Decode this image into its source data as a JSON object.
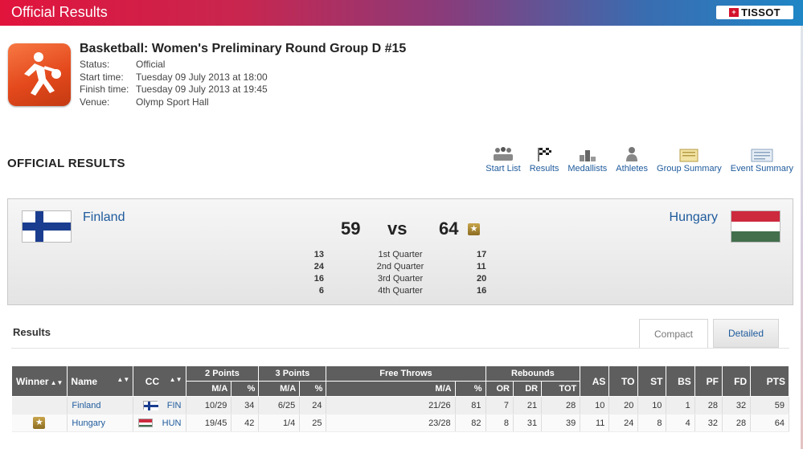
{
  "header": {
    "title": "Official Results",
    "brand": "TISSOT"
  },
  "event": {
    "title": "Basketball: Women's Preliminary Round Group D #15",
    "details": [
      {
        "key": "Status:",
        "value": "Official"
      },
      {
        "key": "Start time:",
        "value": "Tuesday 09 July 2013 at 18:00"
      },
      {
        "key": "Finish time:",
        "value": "Tuesday 09 July 2013 at 19:45"
      },
      {
        "key": "Venue:",
        "value": "Olymp Sport Hall"
      }
    ]
  },
  "section_title": "OFFICIAL RESULTS",
  "nav": [
    {
      "label": "Start List",
      "icon": "start-list-icon"
    },
    {
      "label": "Results",
      "icon": "checkered-flag-icon"
    },
    {
      "label": "Medallists",
      "icon": "podium-icon"
    },
    {
      "label": "Athletes",
      "icon": "athlete-icon"
    },
    {
      "label": "Group Summary",
      "icon": "folder-icon"
    },
    {
      "label": "Event Summary",
      "icon": "document-icon"
    }
  ],
  "match": {
    "team_left": "Finland",
    "team_right": "Hungary",
    "score_left": "59",
    "score_right": "64",
    "vs": "vs",
    "winner_icon": "star-icon",
    "quarters": [
      {
        "left": "13",
        "name": "1st Quarter",
        "right": "17"
      },
      {
        "left": "24",
        "name": "2nd Quarter",
        "right": "11"
      },
      {
        "left": "16",
        "name": "3rd Quarter",
        "right": "20"
      },
      {
        "left": "6",
        "name": "4th Quarter",
        "right": "16"
      }
    ]
  },
  "results": {
    "label": "Results",
    "tabs": {
      "compact": "Compact",
      "detailed": "Detailed"
    },
    "headers": {
      "winner": "Winner",
      "name": "Name",
      "cc": "CC",
      "two": "2 Points",
      "three": "3 Points",
      "ft": "Free Throws",
      "reb": "Rebounds",
      "as": "AS",
      "to": "TO",
      "st": "ST",
      "bs": "BS",
      "pf": "PF",
      "fd": "FD",
      "pts": "PTS",
      "ma": "M/A",
      "pct": "%",
      "or": "OR",
      "dr": "DR",
      "tot": "TOT"
    },
    "rows": [
      {
        "winner": false,
        "name": "Finland",
        "cc": "FIN",
        "two_ma": "10/29",
        "two_pct": "34",
        "three_ma": "6/25",
        "three_pct": "24",
        "ft_ma": "21/26",
        "ft_pct": "81",
        "or": "7",
        "dr": "21",
        "tot": "28",
        "as": "10",
        "to": "20",
        "st": "10",
        "bs": "1",
        "pf": "28",
        "fd": "32",
        "pts": "59"
      },
      {
        "winner": true,
        "name": "Hungary",
        "cc": "HUN",
        "two_ma": "19/45",
        "two_pct": "42",
        "three_ma": "1/4",
        "three_pct": "25",
        "ft_ma": "23/28",
        "ft_pct": "82",
        "or": "8",
        "dr": "31",
        "tot": "39",
        "as": "11",
        "to": "24",
        "st": "8",
        "bs": "4",
        "pf": "32",
        "fd": "28",
        "pts": "64"
      }
    ]
  },
  "colors": {
    "link": "#1e5a9c",
    "header_start": "#e1143c",
    "header_end": "#1f86c6",
    "table_header": "#5e5e5e"
  }
}
